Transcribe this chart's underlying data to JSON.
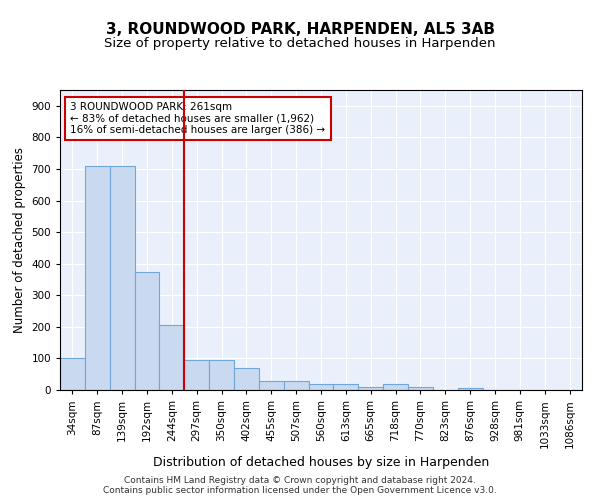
{
  "title": "3, ROUNDWOOD PARK, HARPENDEN, AL5 3AB",
  "subtitle": "Size of property relative to detached houses in Harpenden",
  "xlabel": "Distribution of detached houses by size in Harpenden",
  "ylabel": "Number of detached properties",
  "categories": [
    "34sqm",
    "87sqm",
    "139sqm",
    "192sqm",
    "244sqm",
    "297sqm",
    "350sqm",
    "402sqm",
    "455sqm",
    "507sqm",
    "560sqm",
    "613sqm",
    "665sqm",
    "718sqm",
    "770sqm",
    "823sqm",
    "876sqm",
    "928sqm",
    "981sqm",
    "1033sqm",
    "1086sqm"
  ],
  "values": [
    100,
    710,
    710,
    375,
    205,
    95,
    95,
    70,
    30,
    30,
    20,
    18,
    8,
    18,
    8,
    0,
    5,
    0,
    0,
    0,
    0
  ],
  "bar_color": "#c9d9f0",
  "bar_edge_color": "#6fa8d8",
  "bar_edge_width": 0.8,
  "red_line_x": 4.5,
  "red_line_color": "#cc0000",
  "annotation_line1": "3 ROUNDWOOD PARK: 261sqm",
  "annotation_line2": "← 83% of detached houses are smaller (1,962)",
  "annotation_line3": "16% of semi-detached houses are larger (386) →",
  "annotation_box_color": "#ffffff",
  "annotation_box_edge": "#cc0000",
  "ylim": [
    0,
    950
  ],
  "yticks": [
    0,
    100,
    200,
    300,
    400,
    500,
    600,
    700,
    800,
    900
  ],
  "footer": "Contains HM Land Registry data © Crown copyright and database right 2024.\nContains public sector information licensed under the Open Government Licence v3.0.",
  "plot_bg_color": "#eaf0fb",
  "title_fontsize": 11,
  "subtitle_fontsize": 9.5,
  "xlabel_fontsize": 9,
  "ylabel_fontsize": 8.5,
  "tick_fontsize": 7.5,
  "annotation_fontsize": 7.5,
  "footer_fontsize": 6.5
}
